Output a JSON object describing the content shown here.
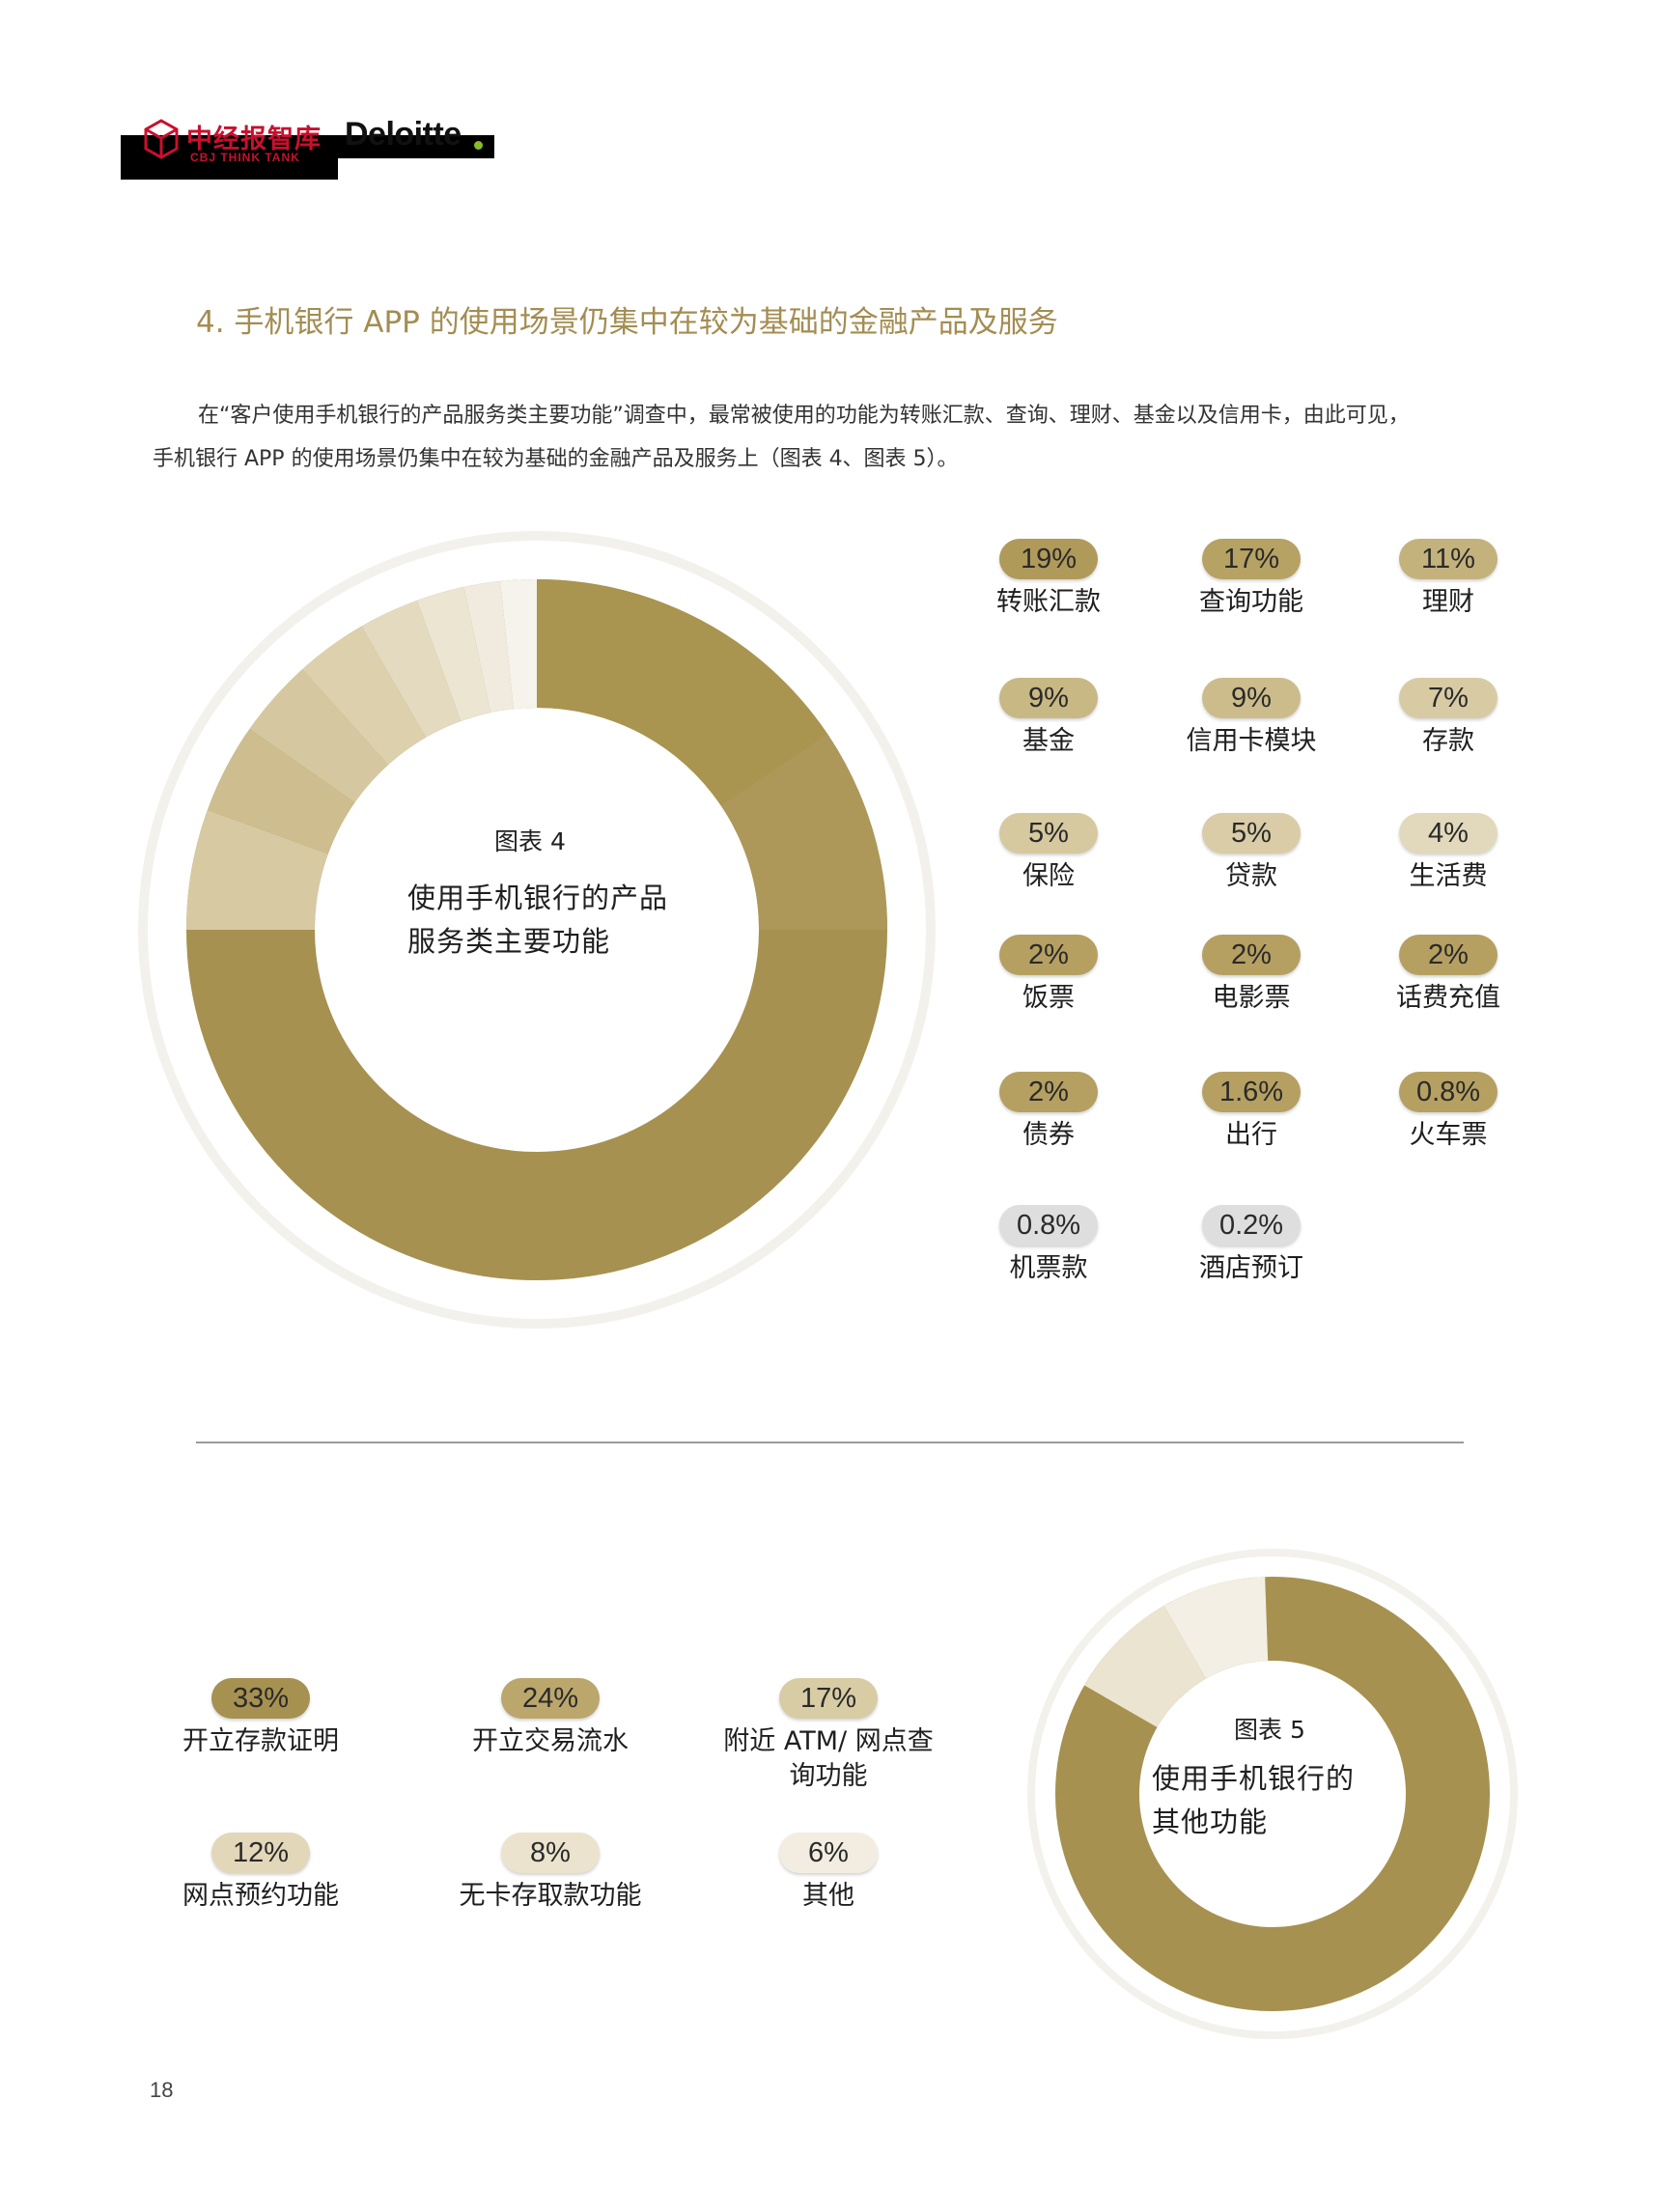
{
  "header": {
    "brand_cn": "中经报智库",
    "brand_en": "CBJ THINK TANK",
    "partner": "Deloitte"
  },
  "section_title": "4. 手机银行 APP 的使用场景仍集中在较为基础的金融产品及服务",
  "intro": {
    "line1": "在“客户使用手机银行的产品服务类主要功能”调查中，最常被使用的功能为转账汇款、查询、理财、基金以及信用卡，由此可见，",
    "line2": "手机银行 APP 的使用场景仍集中在较为基础的金融产品及服务上（图表 4、图表 5）。"
  },
  "colors": {
    "gold": "#a69150",
    "text_accent": "#a38d52"
  },
  "chart_data": [
    {
      "type": "pie",
      "label": "图表 4",
      "title": "使用手机银行的产品服务类主要功能",
      "title_lines": [
        "使用手机银行的产品",
        "服务类主要功能"
      ],
      "items": [
        {
          "label": "转账汇款",
          "value": 19,
          "display": "19%",
          "color": "#b09a5a"
        },
        {
          "label": "查询功能",
          "value": 17,
          "display": "17%",
          "color": "#b6a262"
        },
        {
          "label": "理财",
          "value": 11,
          "display": "11%",
          "color": "#c4b27c"
        },
        {
          "label": "基金",
          "value": 9,
          "display": "9%",
          "color": "#c8b884"
        },
        {
          "label": "信用卡模块",
          "value": 9,
          "display": "9%",
          "color": "#ccbc8b"
        },
        {
          "label": "存款",
          "value": 7,
          "display": "7%",
          "color": "#d8cba3"
        },
        {
          "label": "保险",
          "value": 5,
          "display": "5%",
          "color": "#d6c89f"
        },
        {
          "label": "贷款",
          "value": 5,
          "display": "5%",
          "color": "#d9cca6"
        },
        {
          "label": "生活费",
          "value": 4,
          "display": "4%",
          "color": "#e2d9bd"
        },
        {
          "label": "饭票",
          "value": 2,
          "display": "2%",
          "color": "#b5a061"
        },
        {
          "label": "电影票",
          "value": 2,
          "display": "2%",
          "color": "#b5a061"
        },
        {
          "label": "话费充值",
          "value": 2,
          "display": "2%",
          "color": "#b5a061"
        },
        {
          "label": "债券",
          "value": 2,
          "display": "2%",
          "color": "#b5a061"
        },
        {
          "label": "出行",
          "value": 1.6,
          "display": "1.6%",
          "color": "#b5a061"
        },
        {
          "label": "火车票",
          "value": 0.8,
          "display": "0.8%",
          "color": "#b5a061"
        },
        {
          "label": "机票款",
          "value": 0.8,
          "display": "0.8%",
          "color": "#dedede"
        },
        {
          "label": "酒店预订",
          "value": 0.2,
          "display": "0.2%",
          "color": "#dedede"
        }
      ]
    },
    {
      "type": "pie",
      "label": "图表 5",
      "title": "使用手机银行的其他功能",
      "title_lines": [
        "使用手机银行的",
        "其他功能"
      ],
      "items": [
        {
          "label": "开立存款证明",
          "value": 33,
          "display": "33%",
          "color": "#a69150"
        },
        {
          "label": "开立交易流水",
          "value": 24,
          "display": "24%",
          "color": "#bba66c"
        },
        {
          "label": "附近 ATM/ 网点查询功能",
          "value": 17,
          "display": "17%",
          "color": "#d8cca5"
        },
        {
          "label": "网点预约功能",
          "value": 12,
          "display": "12%",
          "color": "#e2d7b8"
        },
        {
          "label": "无卡存取款功能",
          "value": 8,
          "display": "8%",
          "color": "#ebe3cd"
        },
        {
          "label": "其他",
          "value": 6,
          "display": "6%",
          "color": "#f2ede0"
        }
      ]
    }
  ],
  "page_number": "18"
}
